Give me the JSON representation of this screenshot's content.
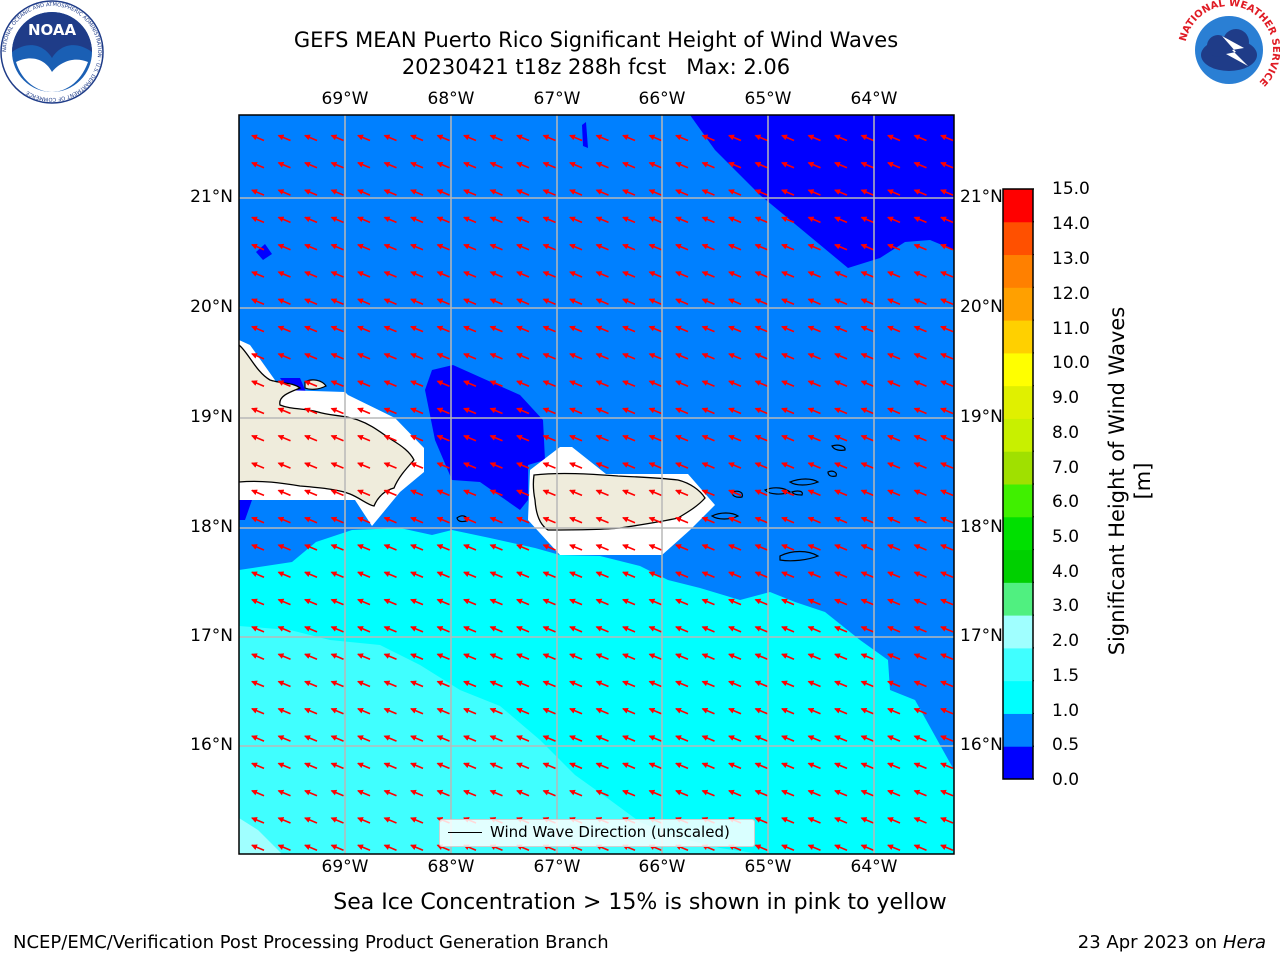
{
  "header": {
    "title_line1": "GEFS MEAN Puerto Rico Significant Height of Wind Waves",
    "title_line2": "20230421 t18z 288h fcst   Max: 2.06"
  },
  "logos": {
    "noaa_text": "NOAA",
    "noaa_ring_text": "NATIONAL OCEANIC AND ATMOSPHERIC ADMINISTRATION · U.S. DEPARTMENT OF COMMERCE",
    "nws_ring_text": "NATIONAL WEATHER SERVICE"
  },
  "map": {
    "lon_labels": [
      "69°W",
      "68°W",
      "67°W",
      "66°W",
      "65°W",
      "64°W"
    ],
    "lat_labels": [
      "21°N",
      "20°N",
      "19°N",
      "18°N",
      "17°N",
      "16°N"
    ],
    "legend_label": "Wind Wave Direction (unscaled)",
    "land_color": "#efecdc",
    "arrow_color": "#ff0000"
  },
  "colorbar": {
    "label": "Significant Height of Wind Waves [m]",
    "ticks": [
      "15.0",
      "14.0",
      "13.0",
      "12.0",
      "11.0",
      "10.0",
      "9.0",
      "8.0",
      "7.0",
      "6.0",
      "5.0",
      "4.0",
      "3.0",
      "2.0",
      "1.5",
      "1.0",
      "0.5",
      "0.0"
    ],
    "colors_bottom_to_top": [
      "#0000ff",
      "#0080ff",
      "#00ffff",
      "#40ffff",
      "#a0ffff",
      "#50f080",
      "#00d000",
      "#00e000",
      "#40f000",
      "#a0e000",
      "#c8f000",
      "#e0f000",
      "#ffff00",
      "#ffd000",
      "#ffa000",
      "#ff8000",
      "#ff5000",
      "#ff0000"
    ]
  },
  "caption": "Sea Ice Concentration > 15% is shown in pink to yellow",
  "footer": {
    "left": "NCEP/EMC/Verification Post Processing Product Generation Branch",
    "right_prefix": "23 Apr 2023 on ",
    "right_host": "Hera"
  }
}
